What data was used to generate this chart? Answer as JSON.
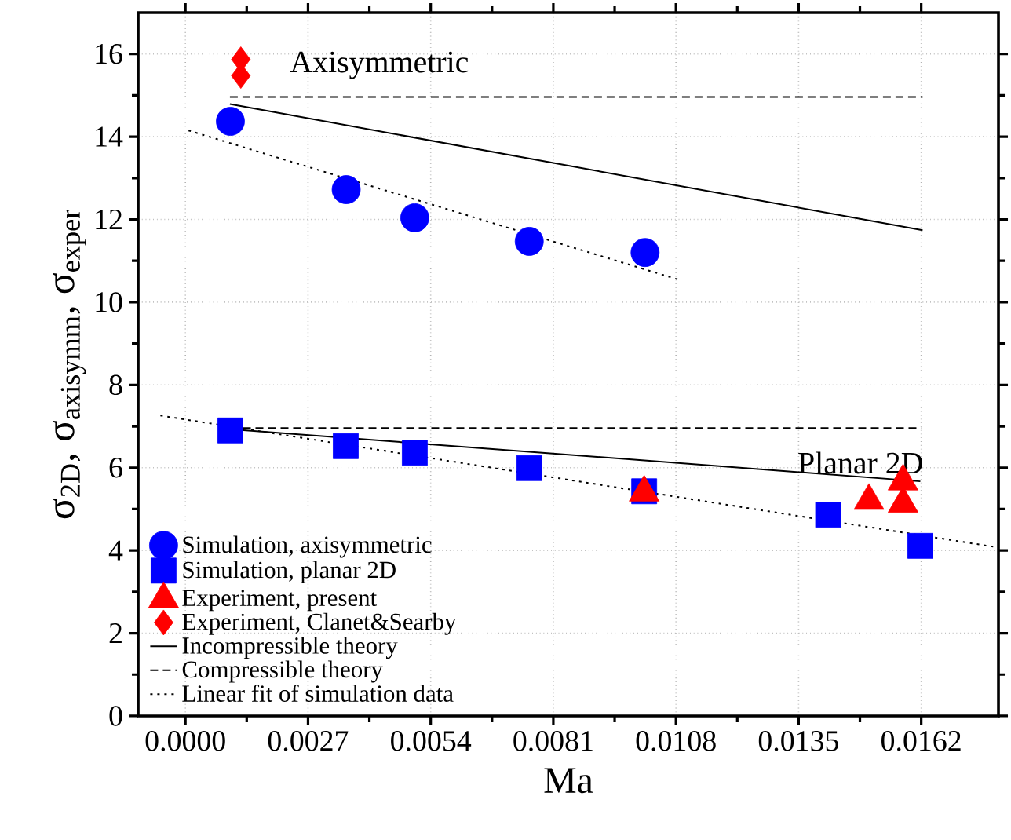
{
  "chart_data": {
    "type": "scatter",
    "xlabel": "Ma",
    "ylabel": "σ$_{2D}$, σ$_{axisymm}$, σ$_{exper}$",
    "xlim": [
      -0.00104,
      0.0179
    ],
    "ylim": [
      0,
      17
    ],
    "xticks": [
      {
        "value": 0,
        "label": "0.0000"
      },
      {
        "value": 0.0027,
        "label": "0.0027"
      },
      {
        "value": 0.0054,
        "label": "0.0054"
      },
      {
        "value": 0.0081,
        "label": "0.0081"
      },
      {
        "value": 0.0108,
        "label": "0.0108"
      },
      {
        "value": 0.0135,
        "label": "0.0135"
      },
      {
        "value": 0.0162,
        "label": "0.0162"
      }
    ],
    "yticks": [
      0,
      2,
      4,
      6,
      8,
      10,
      12,
      14,
      16
    ],
    "grid": true,
    "legend": "bottom left",
    "series": [
      {
        "name": "Simulation, axisymmetric",
        "marker": "circle",
        "color": "#0000ff",
        "x": [
          0.00099,
          0.00354,
          0.00505,
          0.00757,
          0.01012
        ],
        "values": [
          14.37,
          12.72,
          12.04,
          11.47,
          11.2
        ]
      },
      {
        "name": "Simulation, planar 2D",
        "marker": "square",
        "color": "#0000ff",
        "x": [
          0.00099,
          0.00353,
          0.00505,
          0.00757,
          0.0101,
          0.01415,
          0.01618
        ],
        "values": [
          6.9,
          6.52,
          6.36,
          5.99,
          5.43,
          4.86,
          4.11
        ]
      },
      {
        "name": "Experiment, present",
        "marker": "triangle",
        "color": "#ff0000",
        "x": [
          0.0101,
          0.01505,
          0.0158,
          0.0158
        ],
        "values": [
          5.4,
          5.2,
          5.13,
          5.67
        ]
      },
      {
        "name": "Experiment, Clanet&Searby",
        "marker": "diamond",
        "color": "#ff0000",
        "x": [
          0.00122,
          0.00122
        ],
        "values": [
          15.87,
          15.47
        ]
      },
      {
        "name": "Incompressible theory",
        "type": "line",
        "marker": "none",
        "line_style": "solid",
        "color": "#000000",
        "x": [
          0.00098,
          0.01623
        ],
        "values": [
          14.79,
          11.74
        ]
      },
      {
        "name": "Compressible theory",
        "type": "line",
        "marker": "none",
        "line_style": "dashed",
        "color": "#000000",
        "x": [
          0.00098,
          0.01623
        ],
        "values": [
          14.96,
          14.96
        ]
      },
      {
        "name": "Linear fit of simulation data",
        "type": "line",
        "marker": "none",
        "line_style": "dotted",
        "color": "#000000",
        "x": [
          7e-05,
          0.01093
        ],
        "values": [
          14.15,
          10.52
        ]
      },
      {
        "type": "line",
        "marker": "none",
        "line_style": "solid",
        "color": "#000000",
        "x": [
          0.00099,
          0.01618
        ],
        "values": [
          6.93,
          5.67
        ]
      },
      {
        "type": "line",
        "marker": "none",
        "line_style": "dashed",
        "color": "#000000",
        "x": [
          0.00099,
          0.0162
        ],
        "values": [
          6.96,
          6.96
        ]
      },
      {
        "type": "line",
        "marker": "none",
        "line_style": "dotted",
        "color": "#000000",
        "x": [
          -0.00055,
          0.01779
        ],
        "values": [
          7.26,
          4.09
        ]
      }
    ],
    "annotations": [
      "Axisymmetric",
      "Planar 2D"
    ]
  }
}
